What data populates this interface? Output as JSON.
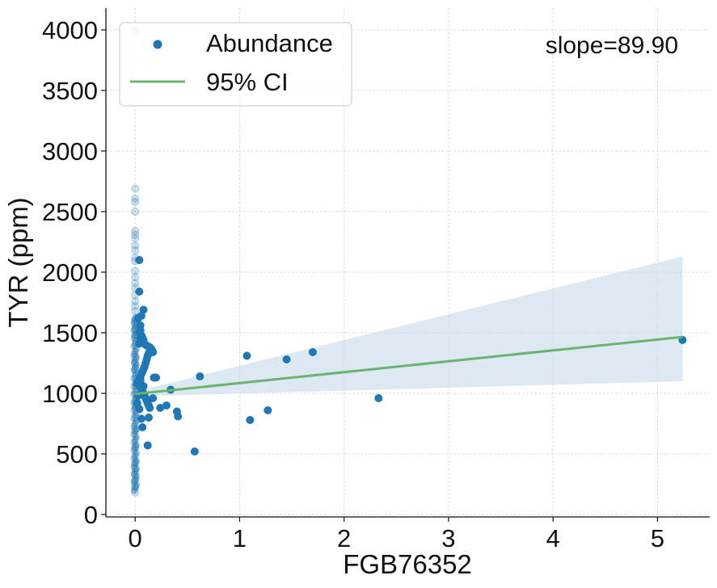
{
  "chart_data": {
    "type": "scatter",
    "xlabel": "FGB76352",
    "ylabel": "TYR (ppm)",
    "xlim": [
      -0.28,
      5.5
    ],
    "ylim": [
      -20,
      4180
    ],
    "x_ticks": [
      0,
      1,
      2,
      3,
      4,
      5
    ],
    "y_ticks": [
      0,
      500,
      1000,
      1500,
      2000,
      2500,
      3000,
      3500,
      4000
    ],
    "x_tick_labels": [
      "0",
      "1",
      "2",
      "3",
      "4",
      "5"
    ],
    "y_tick_labels": [
      "0",
      "500",
      "1000",
      "1500",
      "2000",
      "2500",
      "3000",
      "3500",
      "4000"
    ],
    "grid": true,
    "legend_position": "top-left",
    "legend": [
      {
        "label": "Abundance",
        "marker": "dot"
      },
      {
        "label": "95% CI",
        "marker": "line"
      }
    ],
    "annotation": "slope=89.90",
    "colors": {
      "points": "#1f77b4",
      "fit_line": "#6ab46e",
      "ci_band": "#cddfee"
    },
    "series": [
      {
        "name": "Abundance",
        "faded_x": [
          0,
          0,
          0,
          0,
          0,
          0,
          0,
          0,
          0,
          0,
          0,
          0,
          0,
          0,
          0,
          0,
          0,
          0,
          0,
          0,
          0,
          0,
          0,
          0,
          0,
          0,
          0,
          0,
          0,
          0,
          0,
          0,
          0,
          0,
          0,
          0
        ],
        "faded_y": [
          3990,
          2690,
          2610,
          2580,
          2500,
          2340,
          2310,
          2280,
          2220,
          2180,
          2120,
          2090,
          2010,
          1960,
          1910,
          1870,
          1810,
          1760,
          1720,
          1680,
          1610,
          1570,
          1530,
          1480,
          1300,
          1250,
          1200,
          900,
          700,
          560,
          430,
          380,
          330,
          280,
          230,
          180
        ],
        "x": [
          0.04,
          0.04,
          0.08,
          0.06,
          0.03,
          0.05,
          0.05,
          0.04,
          0.06,
          0.07,
          0.05,
          0.08,
          0.05,
          0.04,
          0.1,
          0.12,
          0.14,
          0.15,
          0.16,
          0.17,
          0.13,
          0.12,
          0.11,
          0.1,
          0.09,
          0.08,
          0.07,
          0.06,
          0.05,
          0.04,
          0.03,
          0.02,
          0.05,
          0.06,
          0.07,
          0.08,
          0.09,
          0.1,
          0.11,
          0.12,
          0.13,
          0.14,
          0.17,
          0.2,
          0.24,
          0.3,
          0.34,
          0.4,
          0.41,
          0.13,
          0.05,
          0.03,
          0.02,
          0.04,
          0.06,
          0.07,
          0.18,
          0.12,
          0.08,
          0.05,
          0.57,
          0.62,
          1.07,
          1.1,
          1.27,
          1.45,
          1.7,
          2.33,
          5.24
        ],
        "y": [
          2100,
          1840,
          1690,
          1640,
          1620,
          1560,
          1520,
          1500,
          1480,
          1460,
          1450,
          1440,
          1420,
          1410,
          1400,
          1390,
          1380,
          1370,
          1360,
          1340,
          1330,
          1310,
          1280,
          1250,
          1220,
          1200,
          1180,
          1160,
          1140,
          1120,
          1100,
          1080,
          1060,
          1040,
          1020,
          1000,
          980,
          960,
          940,
          920,
          900,
          880,
          960,
          1130,
          880,
          900,
          1030,
          850,
          810,
          800,
          1050,
          980,
          920,
          870,
          790,
          720,
          1130,
          570,
          1060,
          1110,
          520,
          1140,
          1310,
          780,
          860,
          1280,
          1340,
          960,
          1440
        ]
      },
      {
        "name": "95% CI",
        "x": [
          0,
          5.24
        ],
        "y": [
          995,
          1466
        ],
        "band_upper": [
          1015,
          2130
        ],
        "band_lower": [
          975,
          1100
        ]
      }
    ],
    "dense_column": {
      "x": 0,
      "y_range": [
        200,
        1650
      ]
    }
  }
}
